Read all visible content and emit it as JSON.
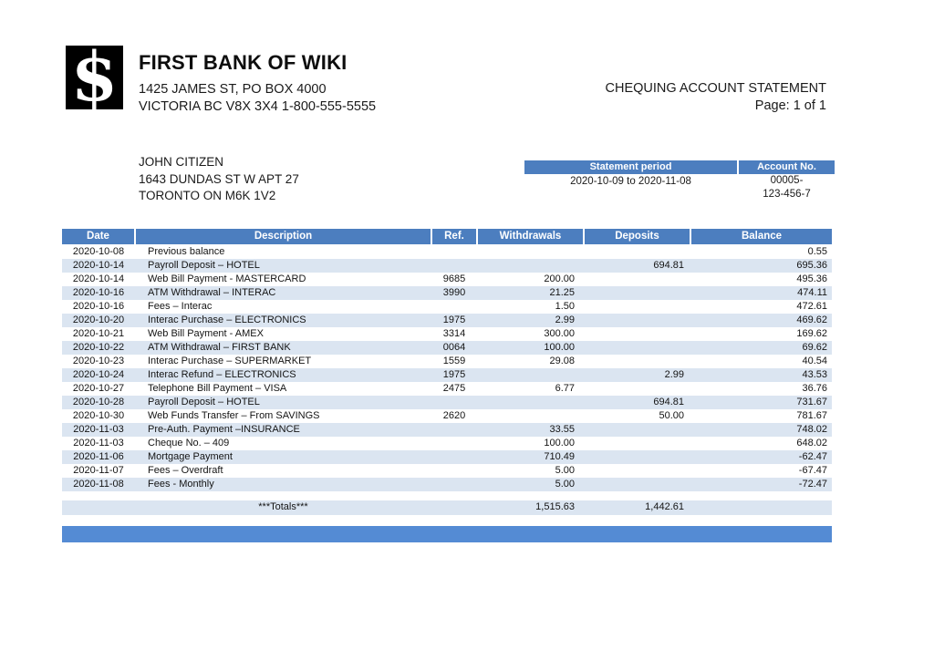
{
  "header": {
    "bank_name": "FIRST BANK OF WIKI",
    "address_line1": "1425 JAMES ST, PO BOX 4000",
    "address_line2": "VICTORIA BC V8X 3X4 1-800-555-5555",
    "statement_type": "CHEQUING ACCOUNT STATEMENT",
    "page_label": "Page: 1 of 1",
    "logo_symbol": "$"
  },
  "customer": {
    "name": "JOHN CITIZEN",
    "address_line1": "1643 DUNDAS ST W APT 27",
    "address_line2": "TORONTO ON M6K 1V2"
  },
  "period_box": {
    "period_header": "Statement period",
    "account_header": "Account No.",
    "period_value": "2020-10-09 to 2020-11-08",
    "account_value_line1": "00005-",
    "account_value_line2": "123-456-7"
  },
  "table": {
    "columns": [
      "Date",
      "Description",
      "Ref.",
      "Withdrawals",
      "Deposits",
      "Balance"
    ],
    "rows": [
      [
        "2020-10-08",
        "Previous balance",
        "",
        "",
        "",
        "0.55"
      ],
      [
        "2020-10-14",
        "Payroll Deposit – HOTEL",
        "",
        "",
        "694.81",
        "695.36"
      ],
      [
        "2020-10-14",
        "Web Bill Payment - MASTERCARD",
        "9685",
        "200.00",
        "",
        "495.36"
      ],
      [
        "2020-10-16",
        "ATM Withdrawal – INTERAC",
        "3990",
        "21.25",
        "",
        "474.11"
      ],
      [
        "2020-10-16",
        "Fees – Interac",
        "",
        "1.50",
        "",
        "472.61"
      ],
      [
        "2020-10-20",
        "Interac Purchase – ELECTRONICS",
        "1975",
        "2.99",
        "",
        "469.62"
      ],
      [
        "2020-10-21",
        "Web Bill Payment - AMEX",
        "3314",
        "300.00",
        "",
        "169.62"
      ],
      [
        "2020-10-22",
        "ATM Withdrawal – FIRST BANK",
        "0064",
        "100.00",
        "",
        "69.62"
      ],
      [
        "2020-10-23",
        "Interac Purchase – SUPERMARKET",
        "1559",
        "29.08",
        "",
        "40.54"
      ],
      [
        "2020-10-24",
        "Interac Refund – ELECTRONICS",
        "1975",
        "",
        "2.99",
        "43.53"
      ],
      [
        "2020-10-27",
        "Telephone Bill Payment – VISA",
        "2475",
        "6.77",
        "",
        "36.76"
      ],
      [
        "2020-10-28",
        "Payroll Deposit – HOTEL",
        "",
        "",
        "694.81",
        "731.67"
      ],
      [
        "2020-10-30",
        "Web Funds Transfer – From SAVINGS",
        "2620",
        "",
        "50.00",
        "781.67"
      ],
      [
        "2020-11-03",
        "Pre-Auth. Payment –INSURANCE",
        "",
        "33.55",
        "",
        "748.02"
      ],
      [
        "2020-11-03",
        "Cheque No. – 409",
        "",
        "100.00",
        "",
        "648.02"
      ],
      [
        "2020-11-06",
        "Mortgage Payment",
        "",
        "710.49",
        "",
        "-62.47"
      ],
      [
        "2020-11-07",
        "Fees – Overdraft",
        "",
        "5.00",
        "",
        "-67.47"
      ],
      [
        "2020-11-08",
        "Fees - Monthly",
        "",
        "5.00",
        "",
        "-72.47"
      ]
    ],
    "totals": {
      "label": "***Totals***",
      "withdrawals": "1,515.63",
      "deposits": "1,442.61"
    }
  },
  "colors": {
    "header_blue": "#4c7ebf",
    "row_alt": "#dbe5f1",
    "totals_bg": "#d9e4f2",
    "footer_bar": "#548bd4"
  }
}
